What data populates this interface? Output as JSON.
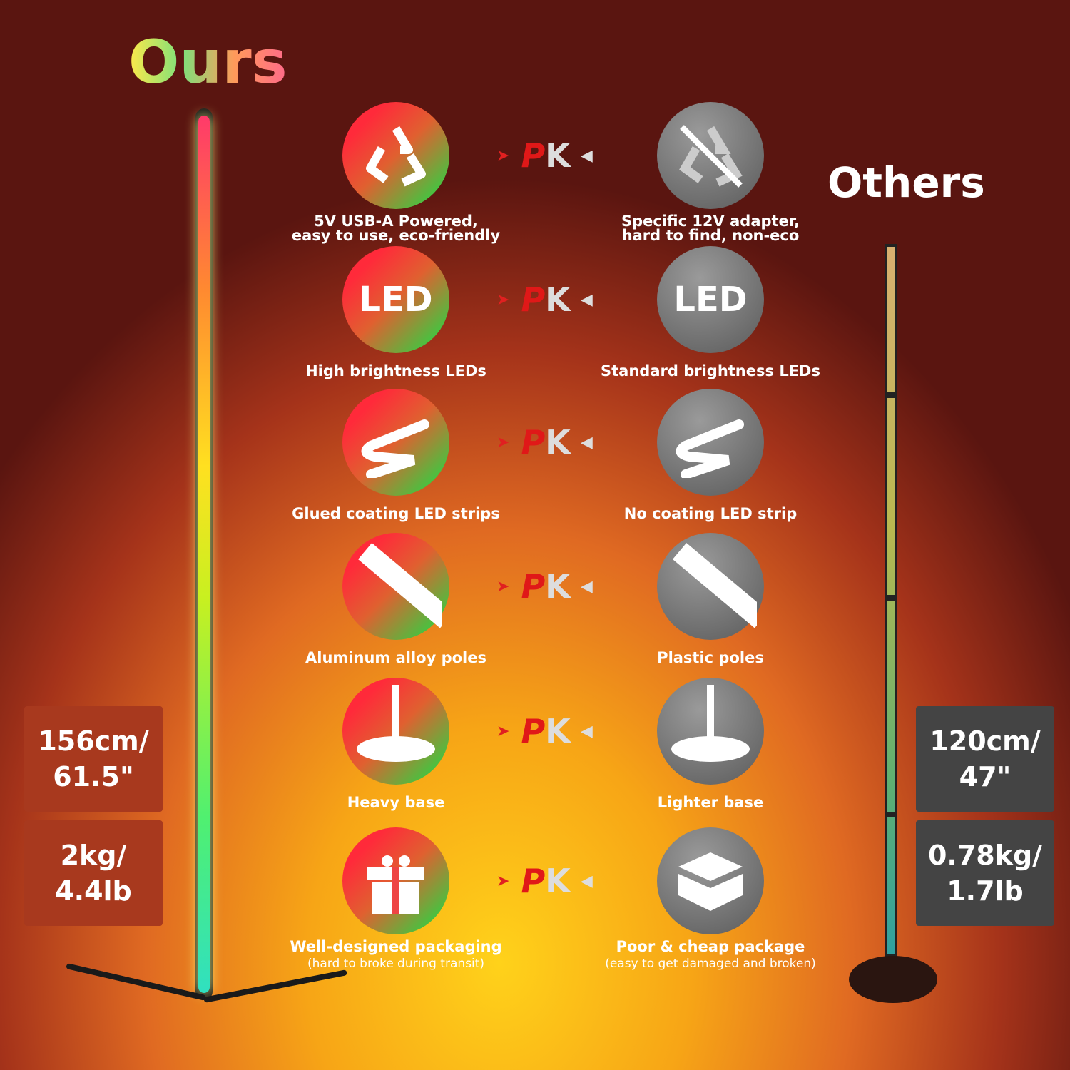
{
  "ours": {
    "title": "Ours",
    "height": "156cm/ 61.5\"",
    "weight": "2kg/ 4.4lb"
  },
  "others": {
    "title": "Others",
    "height": "120cm/ 47\"",
    "weight": "0.78kg/ 1.7lb"
  },
  "pk_label_p": "P",
  "pk_label_k": "K",
  "rows": [
    {
      "ours_icon": "recycle-icon",
      "ours_text": "5V USB-A Powered,",
      "ours_text2": "easy to use, eco-friendly",
      "others_icon": "no-recycle-icon",
      "others_text": "Specific 12V adapter,",
      "others_text2": "hard to find, non-eco"
    },
    {
      "ours_icon": "led-icon",
      "ours_icon_text": "LED",
      "ours_text": "High brightness LEDs",
      "others_icon": "led-icon",
      "others_icon_text": "LED",
      "others_text": "Standard brightness LEDs"
    },
    {
      "ours_icon": "led-strip-icon",
      "ours_text": "Glued coating LED strips",
      "others_icon": "led-strip-icon",
      "others_text": "No coating LED strip"
    },
    {
      "ours_icon": "pole-icon",
      "ours_text": "Aluminum alloy poles",
      "others_icon": "pole-icon",
      "others_text": "Plastic poles"
    },
    {
      "ours_icon": "base-icon",
      "ours_text": "Heavy base",
      "others_icon": "base-icon",
      "others_text": "Lighter base"
    },
    {
      "ours_icon": "gift-icon",
      "ours_text": "Well-designed packaging",
      "ours_sub": "(hard to broke during transit)",
      "others_icon": "box-icon",
      "others_text": "Poor & cheap package",
      "others_sub": "(easy to get damaged and broken)"
    }
  ]
}
